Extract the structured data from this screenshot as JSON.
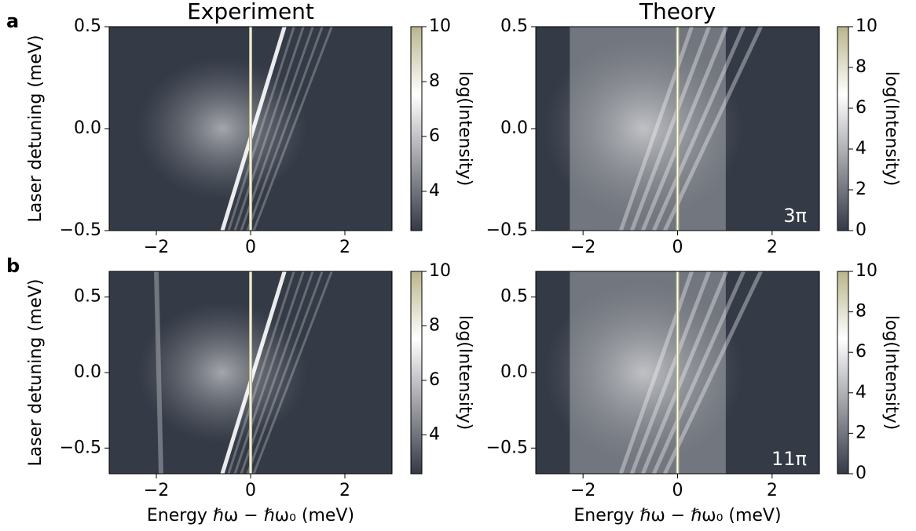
{
  "chart_data": [
    {
      "type": "heatmap",
      "panel_label": "a",
      "title": "Experiment",
      "ylabel": "Laser detuning (meV)",
      "xlim": [
        -3,
        3
      ],
      "xticks": [
        {
          "value": -2,
          "label": "−2"
        },
        0,
        2
      ],
      "ylim": [
        -0.5,
        0.5
      ],
      "yticks": [
        {
          "value": -0.5,
          "label": "−0.5"
        },
        {
          "value": 0,
          "label": "0.0"
        },
        0.5
      ],
      "colorbar": {
        "label": "log(Intensity)",
        "lim": [
          2.57,
          10
        ],
        "ticks": [
          4,
          6,
          8,
          10
        ]
      },
      "colormap": [
        "#343a46",
        "#9c9ea3",
        "#ffffff",
        "#b9b68c"
      ]
    },
    {
      "type": "heatmap",
      "title": "Theory",
      "annotation": "3π",
      "xlim": [
        -3,
        3
      ],
      "xticks": [
        {
          "value": -2,
          "label": "−2"
        },
        0,
        2
      ],
      "ylim": [
        -0.5,
        0.5
      ],
      "yticks": [
        {
          "value": -0.5,
          "label": "−0.5"
        },
        {
          "value": 0,
          "label": "0.0"
        },
        0.5
      ],
      "colorbar": {
        "label": "log(Intensity)",
        "lim": [
          0,
          10
        ],
        "ticks": [
          0,
          2,
          4,
          6,
          8,
          10
        ]
      },
      "colormap": [
        "#343a46",
        "#9c9ea3",
        "#ffffff",
        "#b9b68c"
      ]
    },
    {
      "type": "heatmap",
      "panel_label": "b",
      "ylabel": "Laser detuning (meV)",
      "xlabel": "Energy ℏω − ℏω₀ (meV)",
      "xlim": [
        -3,
        3
      ],
      "xticks": [
        {
          "value": -2,
          "label": "−2"
        },
        0,
        2
      ],
      "ylim": [
        -0.67,
        0.67
      ],
      "yticks": [
        {
          "value": -0.5,
          "label": "−0.5"
        },
        {
          "value": 0,
          "label": "0.0"
        },
        0.5
      ],
      "colorbar": {
        "label": "log(Intensity)",
        "lim": [
          2.57,
          10
        ],
        "ticks": [
          4,
          6,
          8,
          10
        ]
      },
      "colormap": [
        "#343a46",
        "#9c9ea3",
        "#ffffff",
        "#b9b68c"
      ]
    },
    {
      "type": "heatmap",
      "annotation": "11π",
      "xlabel": "Energy ℏω − ℏω₀ (meV)",
      "xlim": [
        -3,
        3
      ],
      "xticks": [
        {
          "value": -2,
          "label": "−2"
        },
        0,
        2
      ],
      "ylim": [
        -0.67,
        0.67
      ],
      "yticks": [
        {
          "value": -0.5,
          "label": "−0.5"
        },
        {
          "value": 0,
          "label": "0.0"
        },
        0.5
      ],
      "colorbar": {
        "label": "log(Intensity)",
        "lim": [
          0,
          10
        ],
        "ticks": [
          0,
          2,
          4,
          6,
          8,
          10
        ]
      },
      "colormap": [
        "#343a46",
        "#9c9ea3",
        "#ffffff",
        "#b9b68c"
      ]
    }
  ]
}
